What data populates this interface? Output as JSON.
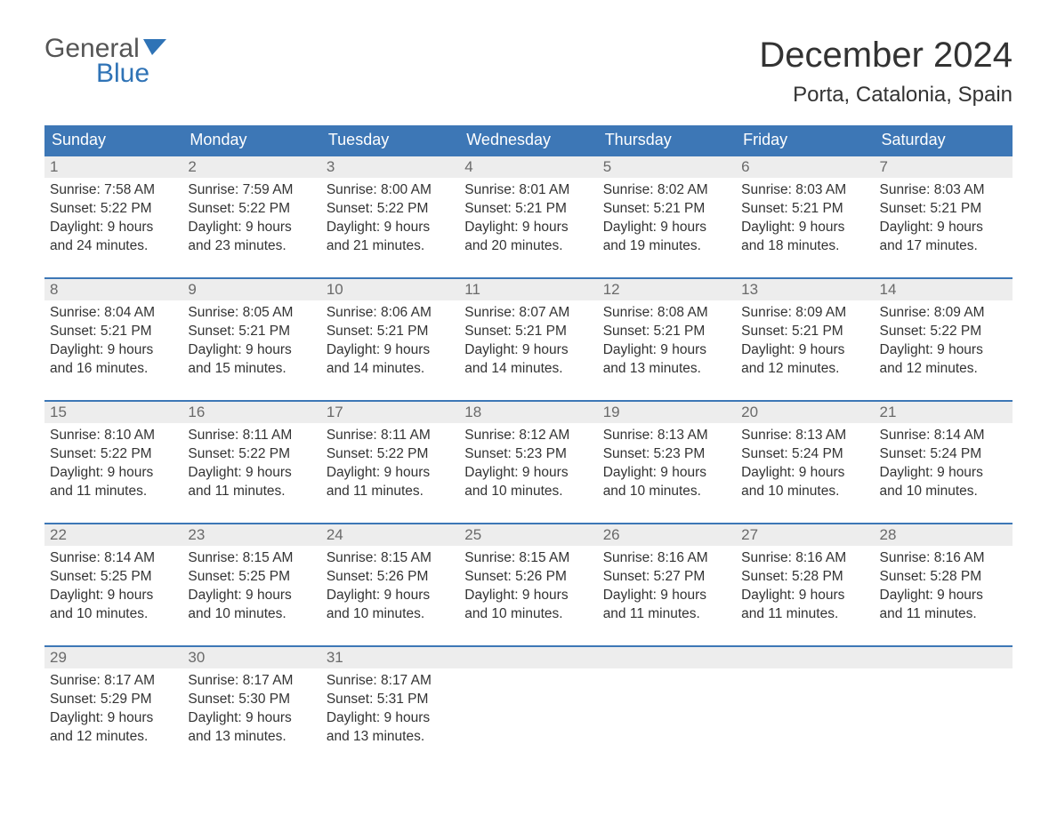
{
  "logo": {
    "word1": "General",
    "word2": "Blue",
    "accent_color": "#2f73b6",
    "text_color": "#555555"
  },
  "title": "December 2024",
  "location": "Porta, Catalonia, Spain",
  "colors": {
    "header_bg": "#3d77b6",
    "header_text": "#ffffff",
    "daynum_bg": "#ededed",
    "daynum_text": "#6a6a6a",
    "body_text": "#333333",
    "rule": "#3d77b6",
    "page_bg": "#ffffff"
  },
  "fonts": {
    "family": "Arial",
    "title_size_pt": 30,
    "location_size_pt": 18,
    "dayhdr_size_pt": 14,
    "body_size_pt": 12
  },
  "day_headers": [
    "Sunday",
    "Monday",
    "Tuesday",
    "Wednesday",
    "Thursday",
    "Friday",
    "Saturday"
  ],
  "weeks": [
    [
      {
        "n": "1",
        "sunrise": "Sunrise: 7:58 AM",
        "sunset": "Sunset: 5:22 PM",
        "daylight": "Daylight: 9 hours and 24 minutes."
      },
      {
        "n": "2",
        "sunrise": "Sunrise: 7:59 AM",
        "sunset": "Sunset: 5:22 PM",
        "daylight": "Daylight: 9 hours and 23 minutes."
      },
      {
        "n": "3",
        "sunrise": "Sunrise: 8:00 AM",
        "sunset": "Sunset: 5:22 PM",
        "daylight": "Daylight: 9 hours and 21 minutes."
      },
      {
        "n": "4",
        "sunrise": "Sunrise: 8:01 AM",
        "sunset": "Sunset: 5:21 PM",
        "daylight": "Daylight: 9 hours and 20 minutes."
      },
      {
        "n": "5",
        "sunrise": "Sunrise: 8:02 AM",
        "sunset": "Sunset: 5:21 PM",
        "daylight": "Daylight: 9 hours and 19 minutes."
      },
      {
        "n": "6",
        "sunrise": "Sunrise: 8:03 AM",
        "sunset": "Sunset: 5:21 PM",
        "daylight": "Daylight: 9 hours and 18 minutes."
      },
      {
        "n": "7",
        "sunrise": "Sunrise: 8:03 AM",
        "sunset": "Sunset: 5:21 PM",
        "daylight": "Daylight: 9 hours and 17 minutes."
      }
    ],
    [
      {
        "n": "8",
        "sunrise": "Sunrise: 8:04 AM",
        "sunset": "Sunset: 5:21 PM",
        "daylight": "Daylight: 9 hours and 16 minutes."
      },
      {
        "n": "9",
        "sunrise": "Sunrise: 8:05 AM",
        "sunset": "Sunset: 5:21 PM",
        "daylight": "Daylight: 9 hours and 15 minutes."
      },
      {
        "n": "10",
        "sunrise": "Sunrise: 8:06 AM",
        "sunset": "Sunset: 5:21 PM",
        "daylight": "Daylight: 9 hours and 14 minutes."
      },
      {
        "n": "11",
        "sunrise": "Sunrise: 8:07 AM",
        "sunset": "Sunset: 5:21 PM",
        "daylight": "Daylight: 9 hours and 14 minutes."
      },
      {
        "n": "12",
        "sunrise": "Sunrise: 8:08 AM",
        "sunset": "Sunset: 5:21 PM",
        "daylight": "Daylight: 9 hours and 13 minutes."
      },
      {
        "n": "13",
        "sunrise": "Sunrise: 8:09 AM",
        "sunset": "Sunset: 5:21 PM",
        "daylight": "Daylight: 9 hours and 12 minutes."
      },
      {
        "n": "14",
        "sunrise": "Sunrise: 8:09 AM",
        "sunset": "Sunset: 5:22 PM",
        "daylight": "Daylight: 9 hours and 12 minutes."
      }
    ],
    [
      {
        "n": "15",
        "sunrise": "Sunrise: 8:10 AM",
        "sunset": "Sunset: 5:22 PM",
        "daylight": "Daylight: 9 hours and 11 minutes."
      },
      {
        "n": "16",
        "sunrise": "Sunrise: 8:11 AM",
        "sunset": "Sunset: 5:22 PM",
        "daylight": "Daylight: 9 hours and 11 minutes."
      },
      {
        "n": "17",
        "sunrise": "Sunrise: 8:11 AM",
        "sunset": "Sunset: 5:22 PM",
        "daylight": "Daylight: 9 hours and 11 minutes."
      },
      {
        "n": "18",
        "sunrise": "Sunrise: 8:12 AM",
        "sunset": "Sunset: 5:23 PM",
        "daylight": "Daylight: 9 hours and 10 minutes."
      },
      {
        "n": "19",
        "sunrise": "Sunrise: 8:13 AM",
        "sunset": "Sunset: 5:23 PM",
        "daylight": "Daylight: 9 hours and 10 minutes."
      },
      {
        "n": "20",
        "sunrise": "Sunrise: 8:13 AM",
        "sunset": "Sunset: 5:24 PM",
        "daylight": "Daylight: 9 hours and 10 minutes."
      },
      {
        "n": "21",
        "sunrise": "Sunrise: 8:14 AM",
        "sunset": "Sunset: 5:24 PM",
        "daylight": "Daylight: 9 hours and 10 minutes."
      }
    ],
    [
      {
        "n": "22",
        "sunrise": "Sunrise: 8:14 AM",
        "sunset": "Sunset: 5:25 PM",
        "daylight": "Daylight: 9 hours and 10 minutes."
      },
      {
        "n": "23",
        "sunrise": "Sunrise: 8:15 AM",
        "sunset": "Sunset: 5:25 PM",
        "daylight": "Daylight: 9 hours and 10 minutes."
      },
      {
        "n": "24",
        "sunrise": "Sunrise: 8:15 AM",
        "sunset": "Sunset: 5:26 PM",
        "daylight": "Daylight: 9 hours and 10 minutes."
      },
      {
        "n": "25",
        "sunrise": "Sunrise: 8:15 AM",
        "sunset": "Sunset: 5:26 PM",
        "daylight": "Daylight: 9 hours and 10 minutes."
      },
      {
        "n": "26",
        "sunrise": "Sunrise: 8:16 AM",
        "sunset": "Sunset: 5:27 PM",
        "daylight": "Daylight: 9 hours and 11 minutes."
      },
      {
        "n": "27",
        "sunrise": "Sunrise: 8:16 AM",
        "sunset": "Sunset: 5:28 PM",
        "daylight": "Daylight: 9 hours and 11 minutes."
      },
      {
        "n": "28",
        "sunrise": "Sunrise: 8:16 AM",
        "sunset": "Sunset: 5:28 PM",
        "daylight": "Daylight: 9 hours and 11 minutes."
      }
    ],
    [
      {
        "n": "29",
        "sunrise": "Sunrise: 8:17 AM",
        "sunset": "Sunset: 5:29 PM",
        "daylight": "Daylight: 9 hours and 12 minutes."
      },
      {
        "n": "30",
        "sunrise": "Sunrise: 8:17 AM",
        "sunset": "Sunset: 5:30 PM",
        "daylight": "Daylight: 9 hours and 13 minutes."
      },
      {
        "n": "31",
        "sunrise": "Sunrise: 8:17 AM",
        "sunset": "Sunset: 5:31 PM",
        "daylight": "Daylight: 9 hours and 13 minutes."
      },
      null,
      null,
      null,
      null
    ]
  ]
}
